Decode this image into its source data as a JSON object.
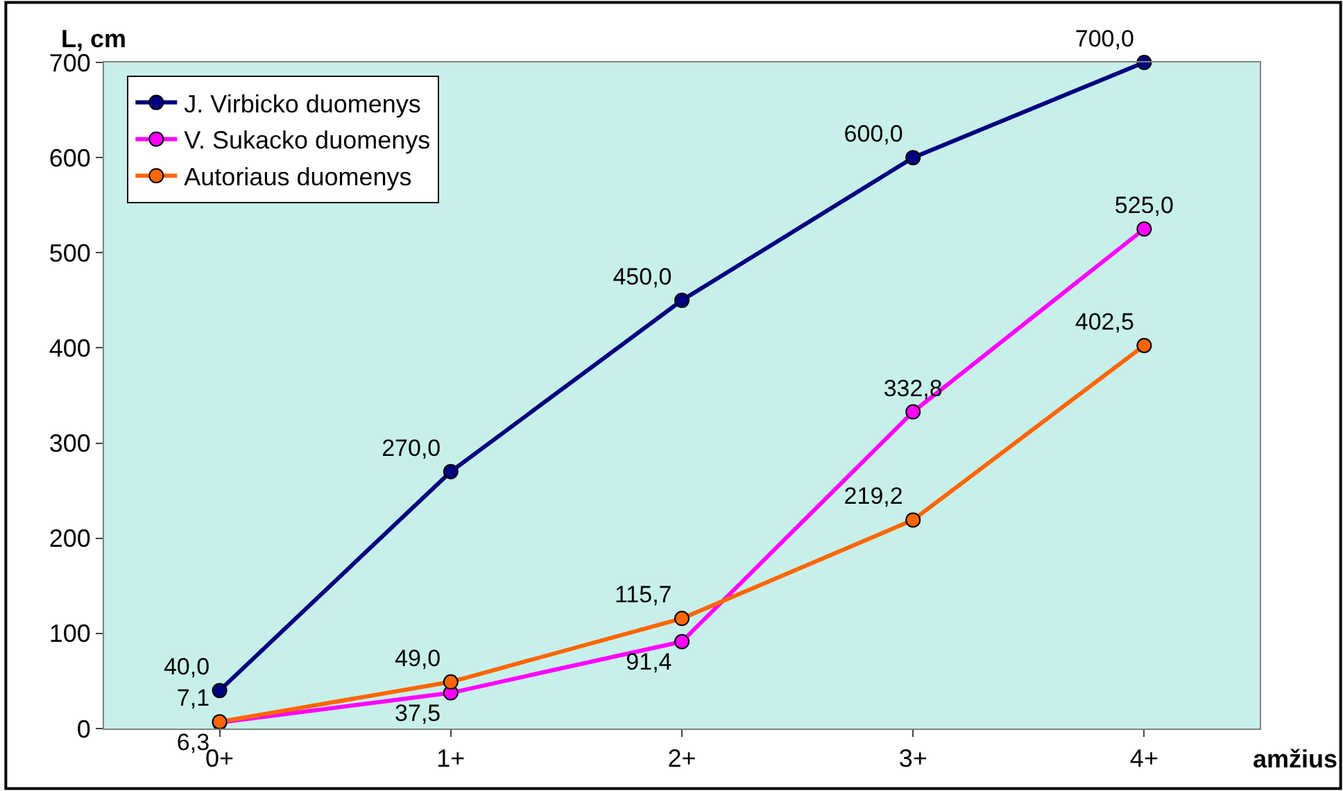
{
  "chart_data": {
    "type": "line",
    "categories": [
      "0+",
      "1+",
      "2+",
      "3+",
      "4+"
    ],
    "xlabel": "amžius",
    "ylabel": "L, cm",
    "ylim": [
      0,
      700
    ],
    "yticks": [
      0,
      100,
      200,
      300,
      400,
      500,
      600,
      700
    ],
    "grid": false,
    "legend": "top left",
    "marker": "circle",
    "line_style": "solid",
    "series": [
      {
        "name": "J. Virbicko duomenys",
        "color": "#000080",
        "values": [
          40.0,
          270.0,
          450.0,
          600.0,
          700.0
        ],
        "value_labels": [
          "40,0",
          "270,0",
          "450,0",
          "600,0",
          "700,0"
        ]
      },
      {
        "name": "V. Sukacko duomenys",
        "color": "#ff00ff",
        "values": [
          6.3,
          37.5,
          91.4,
          332.8,
          525.0
        ],
        "value_labels": [
          "6,3",
          "37,5",
          "91,4",
          "332,8",
          "525,0"
        ]
      },
      {
        "name": "Autoriaus duomenys",
        "color": "#ff6600",
        "values": [
          7.1,
          49.0,
          115.7,
          219.2,
          402.5
        ],
        "value_labels": [
          "7,1",
          "49,0",
          "115,7",
          "219,2",
          "402,5"
        ]
      }
    ]
  }
}
